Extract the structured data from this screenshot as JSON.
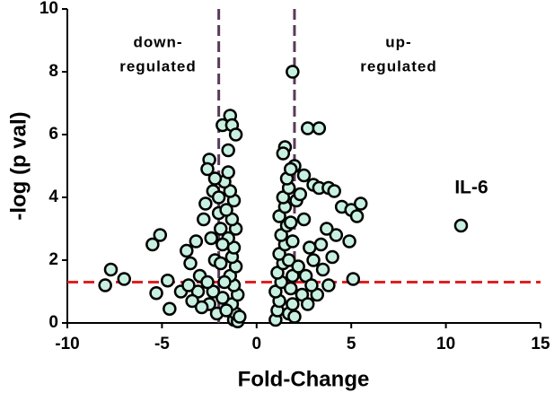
{
  "chart_data": {
    "type": "scatter",
    "xlabel": "Fold-Change",
    "ylabel": "-log (p val)",
    "annotations": [
      "down-",
      "regulated",
      "up-",
      "regulated",
      "IL-6"
    ],
    "xlim": [
      -10,
      15
    ],
    "xticks": [
      -10,
      -5,
      0,
      5,
      10,
      15
    ],
    "ylim": [
      0,
      10
    ],
    "yticks": [
      0,
      2,
      4,
      6,
      8,
      10
    ],
    "color": "#c8f0e0",
    "threshold_x": [
      -2,
      2
    ],
    "threshold_x_color": "#5a3a5a",
    "threshold_y": 1.3,
    "threshold_y_color": "#e02020",
    "x": [
      -8,
      -7.7,
      -7,
      -5.5,
      -5.1,
      -5.3,
      -4.7,
      -4.6,
      -4,
      -3.7,
      -3.5,
      -3.2,
      -3,
      -2.8,
      -2.5,
      -2.3,
      -2,
      -1.8,
      -1.4,
      -1.3,
      -1.1,
      -1.5,
      -2.2,
      -2.5,
      -2.1,
      1.9,
      2.7,
      3.3,
      1.5,
      1.4,
      2.0,
      2.5,
      3.0,
      3.3,
      3.8,
      4.1,
      4.5,
      5.0,
      5.5,
      5.3,
      4.9,
      4.2,
      3.7,
      3.4,
      3.0,
      3.2,
      5.1,
      10.8,
      -1.2,
      -1.1,
      -1.3,
      -1.0,
      -1.2,
      -1.4,
      -1.1,
      -1.3,
      -1.2,
      -1.5,
      -1.1,
      -1.3,
      -1.6,
      -1.2,
      -1.4,
      -1.7,
      -1.5,
      -1.6,
      -1.8,
      -1.7,
      -1.9,
      -1.8,
      -1.9,
      -2.0,
      -1.0,
      -0.9,
      -2.3,
      -2.6,
      -2.4,
      -2.7,
      -2.2,
      -2.6,
      -3.1,
      -3.4,
      -2.9,
      -3.6,
      1.0,
      1.1,
      1.2,
      1.0,
      1.3,
      1.1,
      1.4,
      1.2,
      1.5,
      1.3,
      1.6,
      1.2,
      1.5,
      1.4,
      1.7,
      1.6,
      1.8,
      1.7,
      1.9,
      1.8,
      1.9,
      1.7,
      1.9,
      1.8,
      2.1,
      2.3,
      2.5,
      2.8,
      2.2,
      2.6,
      2.9,
      2.4,
      3.5,
      4.0,
      3.8,
      2.7,
      2.0
    ],
    "values": [
      1.2,
      1.7,
      1.4,
      2.5,
      2.8,
      0.95,
      1.35,
      0.45,
      1.0,
      2.3,
      1.9,
      2.6,
      1.5,
      3.3,
      5.2,
      4.2,
      3.5,
      6.3,
      6.6,
      6.3,
      6.0,
      5.5,
      2.0,
      0.6,
      0.3,
      8.0,
      6.2,
      6.2,
      5.6,
      5.4,
      5.0,
      4.7,
      4.4,
      4.3,
      4.3,
      4.2,
      3.7,
      3.6,
      3.8,
      3.4,
      2.6,
      2.8,
      3.0,
      2.5,
      2.0,
      0.9,
      1.4,
      3.1,
      0.1,
      0.3,
      0.6,
      0.9,
      1.2,
      1.5,
      1.8,
      2.1,
      2.4,
      2.7,
      3.0,
      3.3,
      3.6,
      3.9,
      4.2,
      4.5,
      4.8,
      0.4,
      0.8,
      1.3,
      1.9,
      2.5,
      3.0,
      4.0,
      0.05,
      0.2,
      1.0,
      1.3,
      2.7,
      3.8,
      4.6,
      4.9,
      1.0,
      0.7,
      0.5,
      1.2,
      0.1,
      0.4,
      0.7,
      1.0,
      1.3,
      1.6,
      1.9,
      2.2,
      2.5,
      2.8,
      3.1,
      3.4,
      3.7,
      4.0,
      4.3,
      4.6,
      4.9,
      0.3,
      0.6,
      1.1,
      1.5,
      2.0,
      2.6,
      3.2,
      3.9,
      4.1,
      3.3,
      2.4,
      1.8,
      1.5,
      1.2,
      0.9,
      1.7,
      2.1,
      1.2,
      0.6,
      0.2
    ]
  }
}
